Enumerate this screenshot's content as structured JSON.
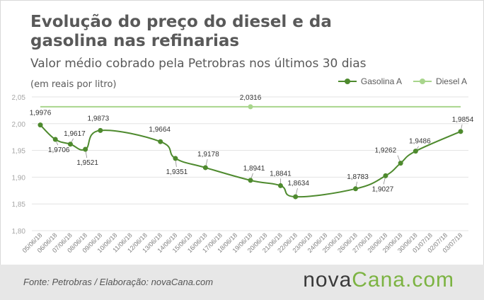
{
  "header": {
    "title": "Evolução do preço do diesel e da gasolina nas refinarias",
    "subtitle": "Valor médio cobrado pela Petrobras nos últimos 30 dias",
    "unit": "(em reais por litro)"
  },
  "footer": {
    "source": "Fonte: Petrobras / Elaboração: novaCana.com",
    "brand_part1": "nova",
    "brand_part2": "Cana.com"
  },
  "colors": {
    "gasolina": "#4e8a2e",
    "diesel": "#a8d58c",
    "grid": "#e3e3e3",
    "axis_text": "#a6a6a6",
    "label_text": "#333333"
  },
  "chart_data": {
    "type": "line",
    "ylim": [
      1.8,
      2.05
    ],
    "yticks": [
      "1,80",
      "1,85",
      "1,90",
      "1,95",
      "2,00",
      "2,05"
    ],
    "yticks_values": [
      1.8,
      1.85,
      1.9,
      1.95,
      2.0,
      2.05
    ],
    "legend_position": "top-right",
    "categories": [
      "05/06/18",
      "06/06/18",
      "07/06/18",
      "08/06/18",
      "09/06/18",
      "10/06/18",
      "11/06/18",
      "12/06/18",
      "13/06/18",
      "14/06/18",
      "15/06/18",
      "16/06/18",
      "17/06/18",
      "18/06/18",
      "19/06/18",
      "20/06/18",
      "21/06/18",
      "22/06/18",
      "23/06/18",
      "24/06/18",
      "25/06/18",
      "26/06/18",
      "27/06/18",
      "28/06/18",
      "29/06/18",
      "30/06/18",
      "01/07/18",
      "02/07/18",
      "03/07/18"
    ],
    "series": [
      {
        "name": "Gasolina A",
        "color": "#4e8a2e",
        "points": [
          {
            "x": "05/06/18",
            "y": 1.9976,
            "label": "1,9976"
          },
          {
            "x": "06/06/18",
            "y": 1.9706,
            "label": "1,9706"
          },
          {
            "x": "07/06/18",
            "y": 1.9617,
            "label": "1,9617"
          },
          {
            "x": "08/06/18",
            "y": 1.9521,
            "label": "1,9521"
          },
          {
            "x": "09/06/18",
            "y": 1.9873,
            "label": "1,9873"
          },
          {
            "x": "13/06/18",
            "y": 1.9664,
            "label": "1,9664"
          },
          {
            "x": "14/06/18",
            "y": 1.9351,
            "label": "1,9351"
          },
          {
            "x": "16/06/18",
            "y": 1.9178,
            "label": "1,9178"
          },
          {
            "x": "19/06/18",
            "y": 1.8941,
            "label": "1,8941"
          },
          {
            "x": "21/06/18",
            "y": 1.8841,
            "label": "1,8841"
          },
          {
            "x": "22/06/18",
            "y": 1.8634,
            "label": "1,8634"
          },
          {
            "x": "26/06/18",
            "y": 1.8783,
            "label": "1,8783"
          },
          {
            "x": "28/06/18",
            "y": 1.9027,
            "label": "1,9027"
          },
          {
            "x": "29/06/18",
            "y": 1.9262,
            "label": "1,9262"
          },
          {
            "x": "30/06/18",
            "y": 1.9486,
            "label": "1,9486"
          },
          {
            "x": "03/07/18",
            "y": 1.9854,
            "label": "1,9854"
          }
        ]
      },
      {
        "name": "Diesel A",
        "color": "#a8d58c",
        "points": [
          {
            "x": "05/06/18",
            "y": 2.0316
          },
          {
            "x": "19/06/18",
            "y": 2.0316,
            "label": "2,0316"
          },
          {
            "x": "03/07/18",
            "y": 2.0316
          }
        ]
      }
    ]
  }
}
